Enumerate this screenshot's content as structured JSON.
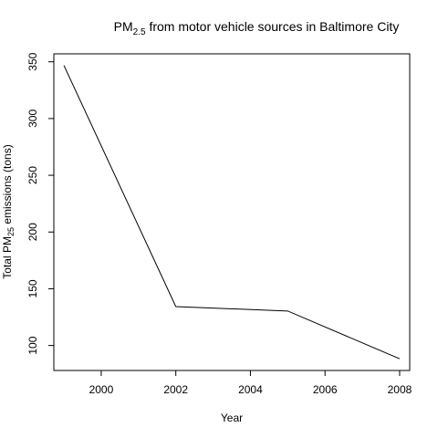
{
  "chart_data": {
    "type": "line",
    "title": {
      "main": "PM",
      "subscript": "2.5",
      "rest": " from motor vehicle sources in Baltimore City"
    },
    "xlabel": "Year",
    "ylabel": {
      "main": "Total  PM",
      "subscript": "25",
      "rest": " emissions (tons)"
    },
    "x": [
      1999,
      2002,
      2005,
      2008
    ],
    "series": [
      {
        "values": [
          346.8,
          134.3,
          130.4,
          88.3
        ]
      }
    ],
    "xlim": [
      1998.73,
      2008.27
    ],
    "ylim": [
      78,
      357
    ],
    "xticks": [
      2000,
      2002,
      2004,
      2006,
      2008
    ],
    "yticks": [
      100,
      150,
      200,
      250,
      300,
      350
    ],
    "grid": false,
    "legend": "none",
    "colors": {
      "line": "#000000",
      "axis": "#000000",
      "background": "#ffffff"
    }
  }
}
